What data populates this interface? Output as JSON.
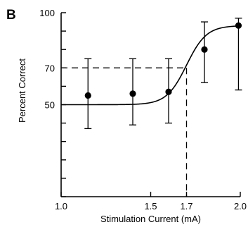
{
  "chart_data": {
    "type": "scatter",
    "panel_label": "B",
    "xlabel": "Stimulation Current (mA)",
    "ylabel": "Percent Correct",
    "xlim": [
      1.0,
      2.0
    ],
    "ylim": [
      0,
      100
    ],
    "xtick_labels": [
      "1.0",
      "1.5",
      "1.7",
      "2.0"
    ],
    "xtick_values": [
      1.0,
      1.5,
      1.7,
      2.0
    ],
    "ytick_labels": [
      "100",
      "70",
      "50"
    ],
    "ytick_values": [
      100,
      70,
      50
    ],
    "minor_ytick_values": [
      0,
      10,
      20,
      30,
      40,
      60,
      80,
      90
    ],
    "series": [
      {
        "x": [
          1.15,
          1.4,
          1.6,
          1.8,
          1.99
        ],
        "y": [
          55,
          56,
          57,
          80,
          93
        ],
        "err_low": [
          37,
          39,
          40,
          62,
          58
        ],
        "err_high": [
          75,
          75,
          75,
          95,
          97
        ]
      }
    ],
    "fit_curve": {
      "lower": 50,
      "upper": 93,
      "midpoint": 1.7,
      "slope": 18
    },
    "threshold": {
      "x": 1.7,
      "y": 70
    }
  }
}
